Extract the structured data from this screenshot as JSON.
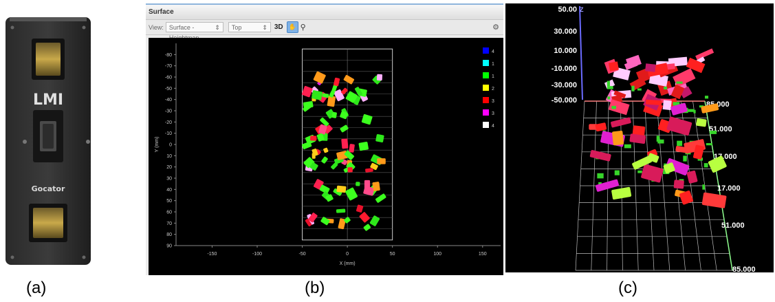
{
  "captions": {
    "a": "(a)",
    "b": "(b)",
    "c": "(c)"
  },
  "sensor": {
    "logo_text": "LMI",
    "model_text": "Gocator"
  },
  "software": {
    "title": "Surface",
    "toolbar": {
      "view_label": "View:",
      "view_mode": "Surface - Heightmap",
      "orientation": "Top",
      "btn_3d": "3D"
    },
    "legend": [
      "4",
      "1",
      "1",
      "2",
      "3",
      "3",
      "4"
    ],
    "legend_colors": [
      "#0000ff",
      "#00ffff",
      "#00ff00",
      "#ffff00",
      "#ff0000",
      "#ff00ff",
      "#ffffff"
    ]
  },
  "chart_data": [
    {
      "type": "heatmap",
      "title": "",
      "xlabel": "X (mm)",
      "ylabel": "Y (mm)",
      "x_ticks": [
        -150,
        -100,
        -50,
        0,
        50,
        100,
        150
      ],
      "y_ticks": [
        -80,
        -70,
        -60,
        -50,
        -40,
        -30,
        -20,
        -10,
        0,
        10,
        20,
        30,
        40,
        50,
        60,
        70,
        80,
        90
      ],
      "xlim": [
        -190,
        170
      ],
      "ylim": [
        -90,
        90
      ],
      "scan_area": {
        "x": [
          -50,
          50
        ],
        "y": [
          -85,
          85
        ]
      }
    },
    {
      "type": "scatter",
      "axis_labels": {
        "z": "Z"
      },
      "z_ticks": [
        "50.00",
        "30.000",
        "10.000",
        "-10.000",
        "-30.000",
        "-50.000"
      ],
      "right_ticks": [
        "85.000",
        "51.000",
        "17.000",
        "17.000",
        "51.000",
        "85.000"
      ]
    }
  ]
}
